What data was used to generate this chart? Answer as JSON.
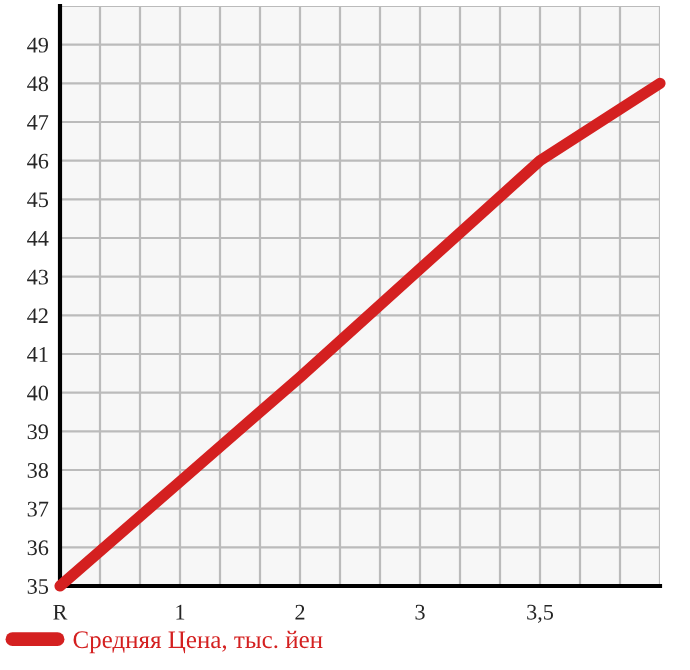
{
  "chart_data": {
    "type": "line",
    "categories": [
      "R",
      "1",
      "2",
      "3",
      "3,5",
      null
    ],
    "series": [
      {
        "name": "Средняя Цена, тыс. йен",
        "color": "#d42020",
        "values": [
          35,
          37.7,
          40.4,
          43.2,
          46,
          48
        ]
      }
    ],
    "ylim": [
      35,
      50
    ],
    "yticks": [
      35,
      36,
      37,
      38,
      39,
      40,
      41,
      42,
      43,
      44,
      45,
      46,
      47,
      48,
      49
    ],
    "grid": true,
    "legend": "bottom left",
    "marker": "none",
    "line_style": "solid"
  }
}
